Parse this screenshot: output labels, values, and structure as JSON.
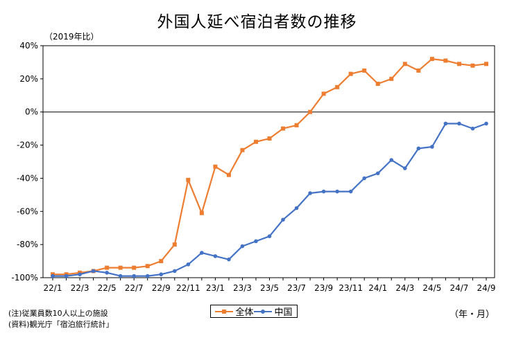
{
  "chart_data": {
    "type": "line",
    "title": "外国人延べ宿泊者数の推移",
    "ylabel": "（2019年比）",
    "period_label": "（年・月）",
    "ylim": [
      -100,
      40
    ],
    "yticks": [
      40,
      20,
      0,
      -20,
      -40,
      -60,
      -80,
      -100
    ],
    "ytick_labels": [
      "40%",
      "20%",
      "0%",
      "-20%",
      "-40%",
      "-60%",
      "-80%",
      "-100%"
    ],
    "xtick_labels": [
      "22/1",
      "22/3",
      "22/5",
      "22/7",
      "22/9",
      "22/11",
      "23/1",
      "23/3",
      "23/5",
      "23/7",
      "23/9",
      "23/11",
      "24/1",
      "24/3",
      "24/5",
      "24/7",
      "24/9"
    ],
    "x": [
      "22/1",
      "22/2",
      "22/3",
      "22/4",
      "22/5",
      "22/6",
      "22/7",
      "22/8",
      "22/9",
      "22/10",
      "22/11",
      "22/12",
      "23/1",
      "23/2",
      "23/3",
      "23/4",
      "23/5",
      "23/6",
      "23/7",
      "23/8",
      "23/9",
      "23/10",
      "23/11",
      "23/12",
      "24/1",
      "24/2",
      "24/3",
      "24/4",
      "24/5",
      "24/6",
      "24/7",
      "24/8",
      "24/9"
    ],
    "series": [
      {
        "name": "全体",
        "color": "#ed7d31",
        "values": [
          -98,
          -98,
          -97,
          -96,
          -94,
          -94,
          -94,
          -93,
          -90,
          -80,
          -41,
          -61,
          -33,
          -38,
          -23,
          -18,
          -16,
          -10,
          -8,
          0,
          11,
          15,
          23,
          25,
          17,
          20,
          29,
          25,
          32,
          31,
          29,
          28,
          29
        ]
      },
      {
        "name": "中国",
        "color": "#4472c4",
        "values": [
          -99,
          -99,
          -98,
          -96,
          -97,
          -99,
          -99,
          -99,
          -98,
          -96,
          -92,
          -85,
          -87,
          -89,
          -81,
          -78,
          -75,
          -65,
          -58,
          -49,
          -48,
          -48,
          -48,
          -40,
          -37,
          -29,
          -34,
          -22,
          -21,
          -7,
          -7,
          -10,
          -7
        ]
      }
    ],
    "grid": false,
    "legend": "bottom-center",
    "zero_line": true
  },
  "notes": {
    "note1": "(注)従業員数10人以上の施設",
    "note2": "(資料)観光庁「宿泊旅行統計」"
  }
}
